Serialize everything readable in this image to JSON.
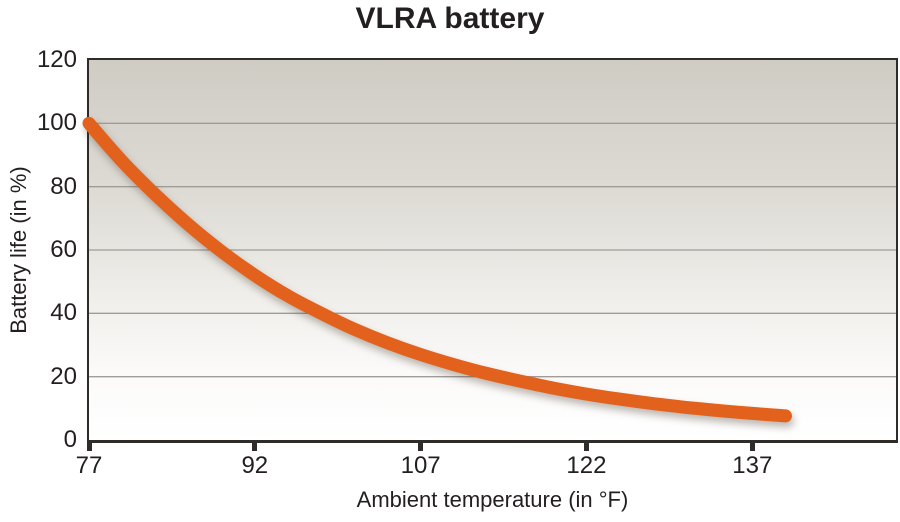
{
  "title": "VLRA battery",
  "colors": {
    "curve": "#e2611c",
    "axis": "#2e2b28",
    "grid": "#a09d99",
    "text": "#231f20",
    "plot_bg_top": "#cfccc4",
    "plot_bg_bottom": "#ffffff"
  },
  "chart_data": {
    "type": "line",
    "title": "VLRA battery",
    "xlabel": "Ambient temperature (in °F)",
    "ylabel": "Battery life (in %)",
    "xlim": [
      77,
      150
    ],
    "ylim": [
      0,
      120
    ],
    "xticks": [
      77,
      92,
      107,
      122,
      137
    ],
    "yticks": [
      0,
      20,
      40,
      60,
      80,
      100,
      120
    ],
    "grid": "horizontal",
    "legend": "none",
    "series": [
      {
        "name": "Battery life",
        "color": "#e2611c",
        "x": [
          77,
          80,
          83,
          86,
          89,
          92,
          95,
          98,
          101,
          104,
          107,
          110,
          113,
          116,
          119,
          122,
          125,
          128,
          131,
          134,
          137,
          140
        ],
        "y": [
          100,
          88,
          77.5,
          68,
          59.5,
          52,
          45.5,
          40,
          35,
          30.7,
          27,
          23.8,
          21,
          18.6,
          16.4,
          14.5,
          12.9,
          11.5,
          10.3,
          9.3,
          8.4,
          7.6
        ]
      }
    ]
  }
}
